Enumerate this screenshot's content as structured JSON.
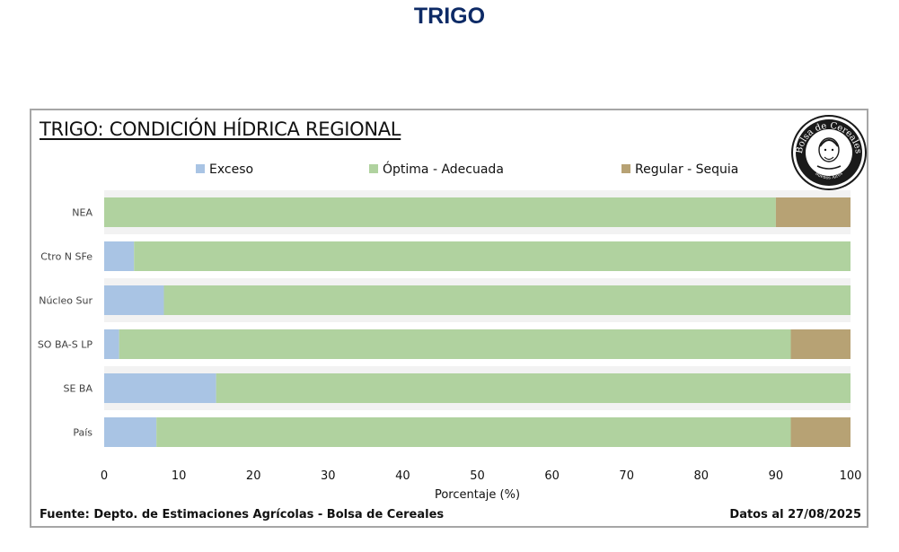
{
  "page": {
    "title": "TRIGO"
  },
  "chart": {
    "title": "TRIGO: CONDICIÓN HÍDRICA REGIONAL",
    "source": "Fuente: Depto. de Estimaciones Agrícolas - Bolsa de Cereales",
    "date": "Datos al 27/08/2025"
  },
  "logo": {
    "top_text": "Bolsa de Cereales",
    "motto": "Comercio et Laboris",
    "bottom_text": "Buenos Aires"
  },
  "colors": {
    "exceso": "#a9c4e4",
    "optima": "#b0d29f",
    "regular": "#b7a274",
    "title": "#0d2a66"
  },
  "chart_data": {
    "type": "bar",
    "orientation": "horizontal",
    "stacked": true,
    "title": "TRIGO: CONDICIÓN HÍDRICA REGIONAL",
    "xlabel": "Porcentaje (%)",
    "ylabel": "",
    "xlim": [
      0,
      100
    ],
    "x_ticks": [
      0,
      10,
      20,
      30,
      40,
      50,
      60,
      70,
      80,
      90,
      100
    ],
    "legend_position": "top",
    "categories": [
      "NEA",
      "Ctro N SFe",
      "Núcleo Sur",
      "SO BA-S LP",
      "SE BA",
      "País"
    ],
    "series": [
      {
        "name": "Exceso",
        "color": "#a9c4e4",
        "values": [
          0,
          4,
          8,
          2,
          15,
          7
        ]
      },
      {
        "name": "Óptima - Adecuada",
        "color": "#b0d29f",
        "values": [
          90,
          96,
          92,
          90,
          85,
          85
        ]
      },
      {
        "name": "Regular - Sequia",
        "color": "#b7a274",
        "values": [
          10,
          0,
          0,
          8,
          0,
          8
        ]
      }
    ]
  }
}
